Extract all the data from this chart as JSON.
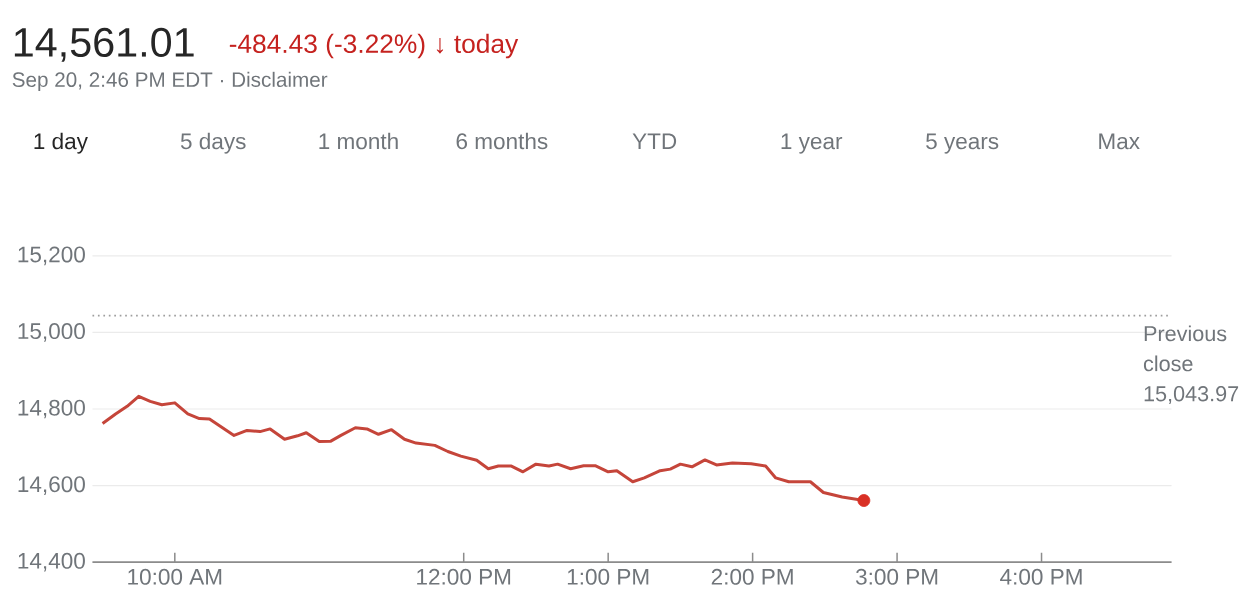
{
  "chart_data": {
    "type": "line",
    "title": "14,561.01",
    "subtitle": "-484.43 (-3.22%) ↓ today",
    "annotations": [
      "Sep 20, 2:46 PM EDT · Disclaimer",
      "1 day",
      "5 days",
      "1 month",
      "6 months",
      "YTD",
      "1 year",
      "5 years",
      "Max"
    ],
    "series": [
      {
        "color": "#c5453a",
        "x": [
          9.5,
          9.59,
          9.67,
          9.75,
          9.83,
          9.91,
          10.0,
          10.09,
          10.17,
          10.24,
          10.33,
          10.41,
          10.5,
          10.59,
          10.66,
          10.76,
          10.85,
          10.91,
          11.0,
          11.08,
          11.15,
          11.25,
          11.33,
          11.41,
          11.5,
          11.59,
          11.67,
          11.8,
          11.89,
          11.98,
          12.09,
          12.17,
          12.24,
          12.33,
          12.41,
          12.5,
          12.59,
          12.65,
          12.74,
          12.83,
          12.91,
          13.0,
          13.06,
          13.17,
          13.25,
          13.36,
          13.43,
          13.5,
          13.58,
          13.67,
          13.75,
          13.86,
          13.99,
          14.09,
          14.16,
          14.25,
          14.4,
          14.49,
          14.62,
          14.77
        ],
        "values": [
          14762,
          14787,
          14807,
          14833,
          14820,
          14811,
          14816,
          14787,
          14775,
          14774,
          14751,
          14731,
          14744,
          14741,
          14748,
          14721,
          14730,
          14738,
          14715,
          14716,
          14731,
          14751,
          14748,
          14734,
          14746,
          14721,
          14711,
          14705,
          14689,
          14677,
          14666,
          14644,
          14651,
          14651,
          14636,
          14656,
          14651,
          14656,
          14644,
          14652,
          14652,
          14636,
          14639,
          14610,
          14620,
          14639,
          14643,
          14656,
          14649,
          14667,
          14654,
          14659,
          14657,
          14651,
          14620,
          14610,
          14610,
          14582,
          14570,
          14561
        ]
      },
      {
        "type": "scatter",
        "color": "#d93025",
        "x": [
          14.77
        ],
        "values": [
          14561
        ]
      }
    ],
    "xlim": [
      9.43,
      16.9
    ],
    "xticks": [
      {
        "value": 10,
        "label": "10:00 AM"
      },
      {
        "value": 12,
        "label": "12:00 PM"
      },
      {
        "value": 13,
        "label": "1:00 PM"
      },
      {
        "value": 14,
        "label": "2:00 PM"
      },
      {
        "value": 15,
        "label": "3:00 PM"
      },
      {
        "value": 16,
        "label": "4:00 PM"
      }
    ],
    "ylim": [
      14400,
      15200
    ],
    "yticks": [
      {
        "value": 14400,
        "label": "14,400"
      },
      {
        "value": 14600,
        "label": "14,600"
      },
      {
        "value": 14800,
        "label": "14,800"
      },
      {
        "value": 15000,
        "label": "15,000"
      },
      {
        "value": 15200,
        "label": "15,200"
      }
    ],
    "grid": "y",
    "ref_lines": [
      {
        "axis": "y",
        "value": 15043.97,
        "label": "Previous close 15,043.97",
        "color": "#9e9e9e",
        "line_style": "dotted"
      }
    ]
  }
}
